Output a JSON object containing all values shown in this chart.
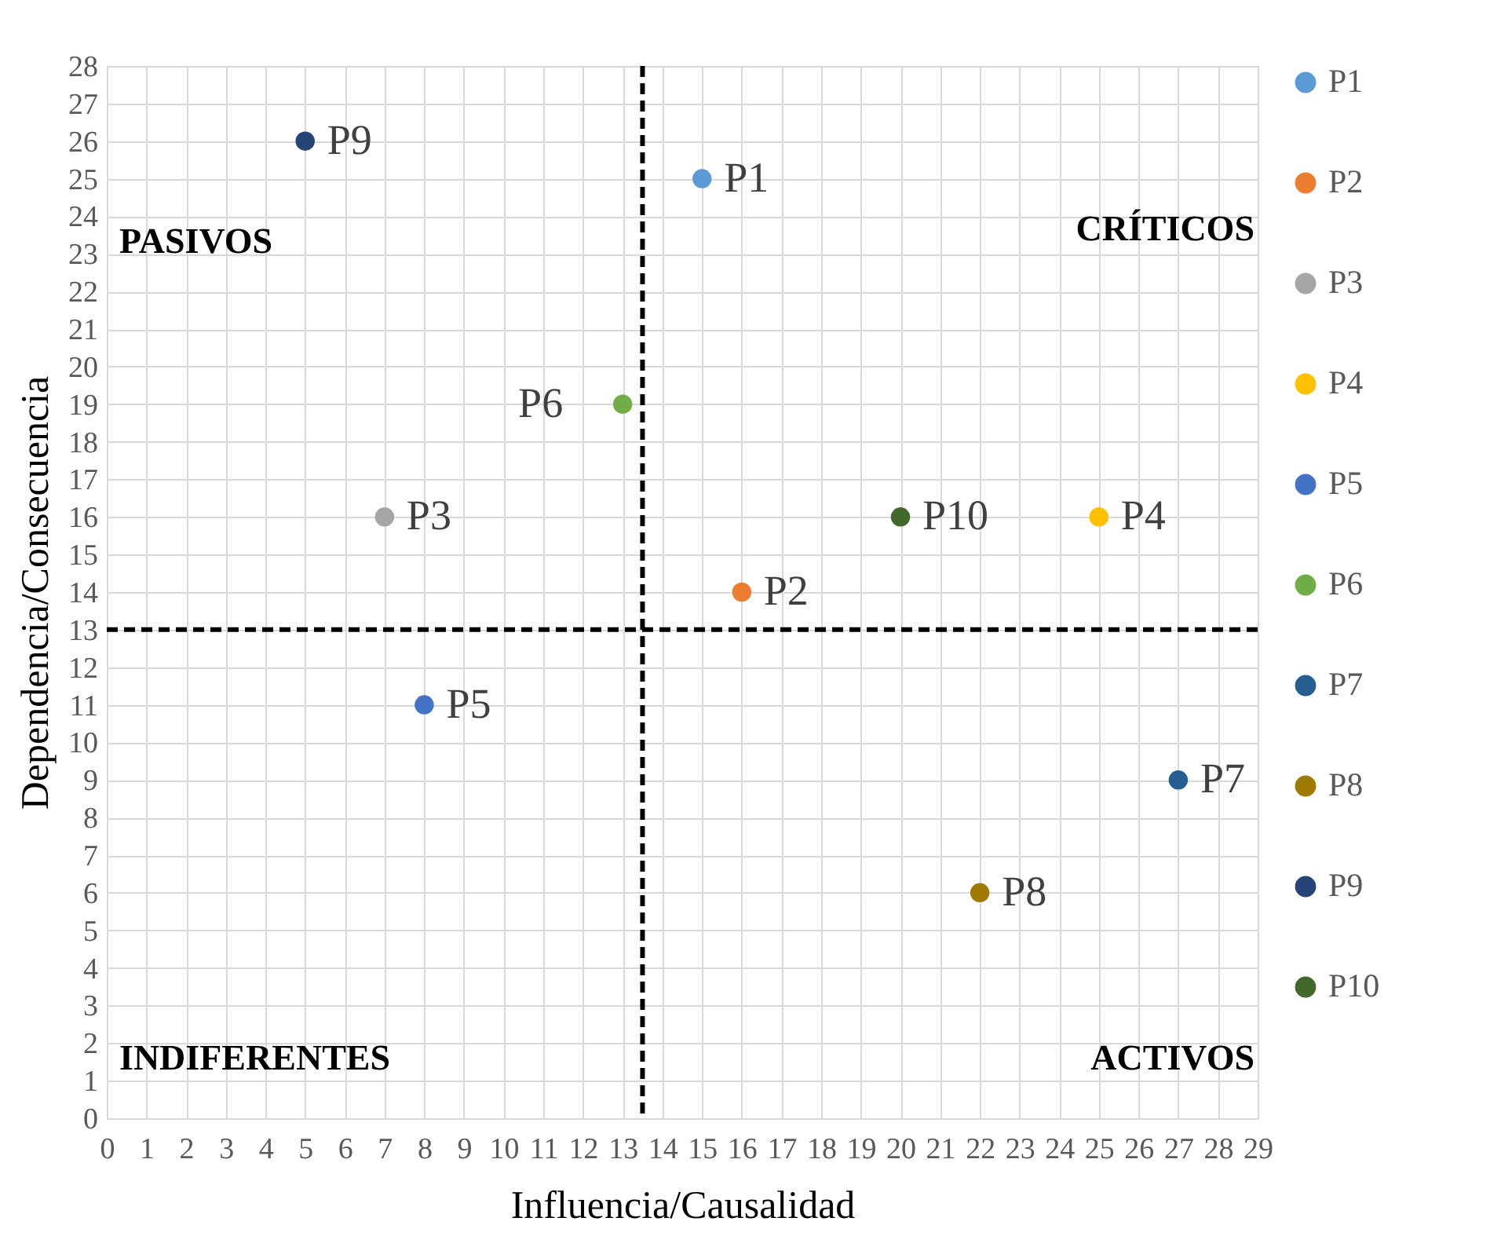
{
  "chart_data": {
    "type": "scatter",
    "xlabel": "Influencia/Causalidad",
    "ylabel": "Dependencia/Consecuencia",
    "series": [
      {
        "name": "P1",
        "color": "#5b9bd5",
        "x": [
          15
        ],
        "values": [
          25
        ]
      },
      {
        "name": "P2",
        "color": "#ed7d31",
        "x": [
          16
        ],
        "values": [
          14
        ]
      },
      {
        "name": "P3",
        "color": "#a5a5a5",
        "x": [
          7
        ],
        "values": [
          16
        ]
      },
      {
        "name": "P4",
        "color": "#ffc000",
        "x": [
          25
        ],
        "values": [
          16
        ]
      },
      {
        "name": "P5",
        "color": "#4472c4",
        "x": [
          8
        ],
        "values": [
          11
        ]
      },
      {
        "name": "P6",
        "color": "#70ad47",
        "x": [
          13
        ],
        "values": [
          19
        ]
      },
      {
        "name": "P7",
        "color": "#255e91",
        "x": [
          27
        ],
        "values": [
          9
        ]
      },
      {
        "name": "P8",
        "color": "#9e7b00",
        "x": [
          22
        ],
        "values": [
          6
        ]
      },
      {
        "name": "P9",
        "color": "#264478",
        "x": [
          5
        ],
        "values": [
          26
        ]
      },
      {
        "name": "P10",
        "color": "#43682b",
        "x": [
          20
        ],
        "values": [
          16
        ]
      }
    ],
    "xlim": [
      0,
      29
    ],
    "xticks": [
      0,
      1,
      2,
      3,
      4,
      5,
      6,
      7,
      8,
      9,
      10,
      11,
      12,
      13,
      14,
      15,
      16,
      17,
      18,
      19,
      20,
      21,
      22,
      23,
      24,
      25,
      26,
      27,
      28,
      29
    ],
    "ylim": [
      0,
      28
    ],
    "yticks": [
      0,
      1,
      2,
      3,
      4,
      5,
      6,
      7,
      8,
      9,
      10,
      11,
      12,
      13,
      14,
      15,
      16,
      17,
      18,
      19,
      20,
      21,
      22,
      23,
      24,
      25,
      26,
      27,
      28
    ],
    "ref_lines": [
      {
        "axis": "x",
        "value": 13.5,
        "color": "#000000",
        "line_style": "dashed"
      },
      {
        "axis": "y",
        "value": 13,
        "color": "#000000",
        "line_style": "dashed"
      }
    ],
    "annotations": [
      "PASIVOS",
      "CRÍTICOS",
      "INDIFERENTES",
      "ACTIVOS"
    ],
    "grid": true,
    "legend": "right",
    "marker": "circle"
  }
}
